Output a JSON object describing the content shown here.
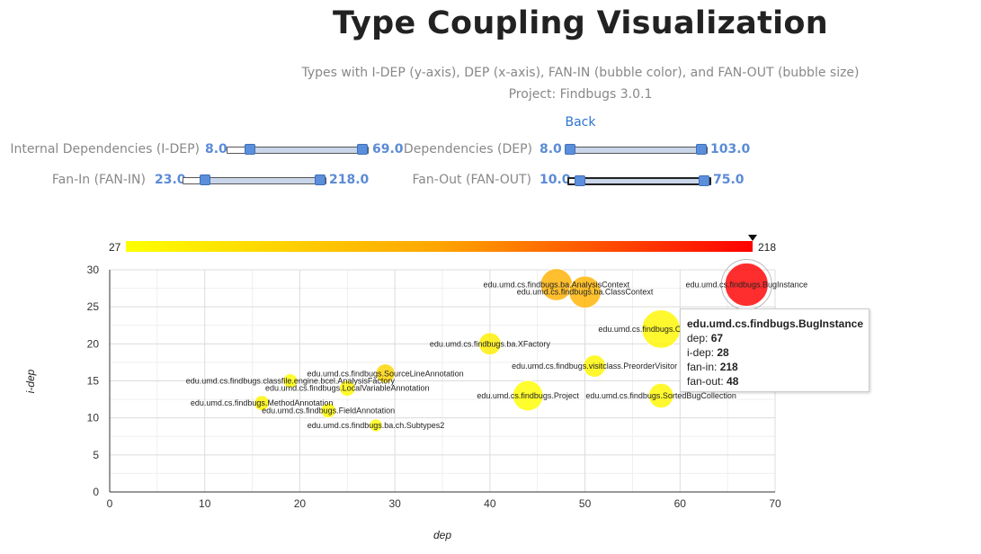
{
  "header": {
    "title": "Type Coupling Visualization",
    "subtitle": "Types with I-DEP (y-axis), DEP (x-axis), FAN-IN (bubble color), and FAN-OUT (bubble size)",
    "project": "Project: Findbugs 3.0.1",
    "back_label": "Back"
  },
  "filters": {
    "idep": {
      "label": "Internal Dependencies (I-DEP)",
      "min": "8.0",
      "max": "69.0",
      "low_frac": 0.162,
      "high_frac": 1.0
    },
    "dep": {
      "label": "Dependencies (DEP)",
      "min": "8.0",
      "max": "103.0",
      "low_frac": 0.03,
      "high_frac": 1.0
    },
    "fanin": {
      "label": "Fan-In (FAN-IN)",
      "min": "23.0",
      "max": "218.0",
      "low_frac": 0.15,
      "high_frac": 1.0
    },
    "fanout": {
      "label": "Fan-Out (FAN-OUT)",
      "min": "10.0",
      "max": "75.0",
      "low_frac": 0.08,
      "high_frac": 1.0
    }
  },
  "color_scale": {
    "min_label": "27",
    "max_label": "218",
    "min": 27,
    "max": 218,
    "colors": [
      "#ffff00",
      "#ffa500",
      "#ff0000"
    ],
    "marker_value": 218
  },
  "colors": {
    "accent": "#5b8bd6",
    "link": "#2f74d0"
  },
  "chart_data": {
    "type": "scatter",
    "xlabel": "dep",
    "ylabel": "i-dep",
    "xlim": [
      0,
      70
    ],
    "ylim": [
      0,
      30
    ],
    "xticks": [
      0,
      10,
      20,
      30,
      40,
      50,
      60,
      70
    ],
    "yticks": [
      0,
      5,
      10,
      15,
      20,
      25,
      30
    ],
    "grid": true,
    "points": [
      {
        "label": "edu.umd.cs.findbugs.ba.ch.Subtypes2",
        "x": 28,
        "y": 9,
        "fanin": 30,
        "fanout": 10
      },
      {
        "label": "edu.umd.cs.findbugs.FieldAnnotation",
        "x": 23,
        "y": 11,
        "fanin": 35,
        "fanout": 13
      },
      {
        "label": "edu.umd.cs.findbugs.MethodAnnotation",
        "x": 16,
        "y": 12,
        "fanin": 40,
        "fanout": 13
      },
      {
        "label": "edu.umd.cs.findbugs.LocalVariableAnnotation",
        "x": 25,
        "y": 14,
        "fanin": 35,
        "fanout": 14
      },
      {
        "label": "edu.umd.cs.findbugs.classfile.engine.bcel.AnalysisFactory",
        "x": 19,
        "y": 15,
        "fanin": 30,
        "fanout": 12
      },
      {
        "label": "edu.umd.cs.findbugs.SourceLineAnnotation",
        "x": 29,
        "y": 16,
        "fanin": 70,
        "fanout": 18
      },
      {
        "label": "edu.umd.cs.findbugs.ba.XFactory",
        "x": 40,
        "y": 20,
        "fanin": 45,
        "fanout": 22
      },
      {
        "label": "edu.umd.cs.findbugs.visitclass.PreorderVisitor",
        "x": 51,
        "y": 17,
        "fanin": 35,
        "fanout": 22
      },
      {
        "label": "edu.umd.cs.findbugs.Project",
        "x": 44,
        "y": 13,
        "fanin": 30,
        "fanout": 32
      },
      {
        "label": "edu.umd.cs.findbugs.SortedBugCollection",
        "x": 58,
        "y": 13,
        "fanin": 35,
        "fanout": 25
      },
      {
        "label": "edu.umd.cs.findbugs.OpcodeStack",
        "x": 58,
        "y": 22,
        "fanin": 35,
        "fanout": 42
      },
      {
        "label": "edu.umd.cs.findbugs.ba.AnalysisContext",
        "x": 47,
        "y": 28,
        "fanin": 110,
        "fanout": 34
      },
      {
        "label": "edu.umd.cs.findbugs.ba.ClassContext",
        "x": 50,
        "y": 27,
        "fanin": 105,
        "fanout": 34
      },
      {
        "label": "edu.umd.cs.findbugs.BugInstance",
        "x": 67,
        "y": 28,
        "fanin": 218,
        "fanout": 48
      }
    ]
  },
  "tooltip": {
    "title": "edu.umd.cs.findbugs.BugInstance",
    "rows": [
      {
        "key": "dep:",
        "value": "67"
      },
      {
        "key": "i-dep:",
        "value": "28"
      },
      {
        "key": "fan-in:",
        "value": "218"
      },
      {
        "key": "fan-out:",
        "value": "48"
      }
    ]
  }
}
